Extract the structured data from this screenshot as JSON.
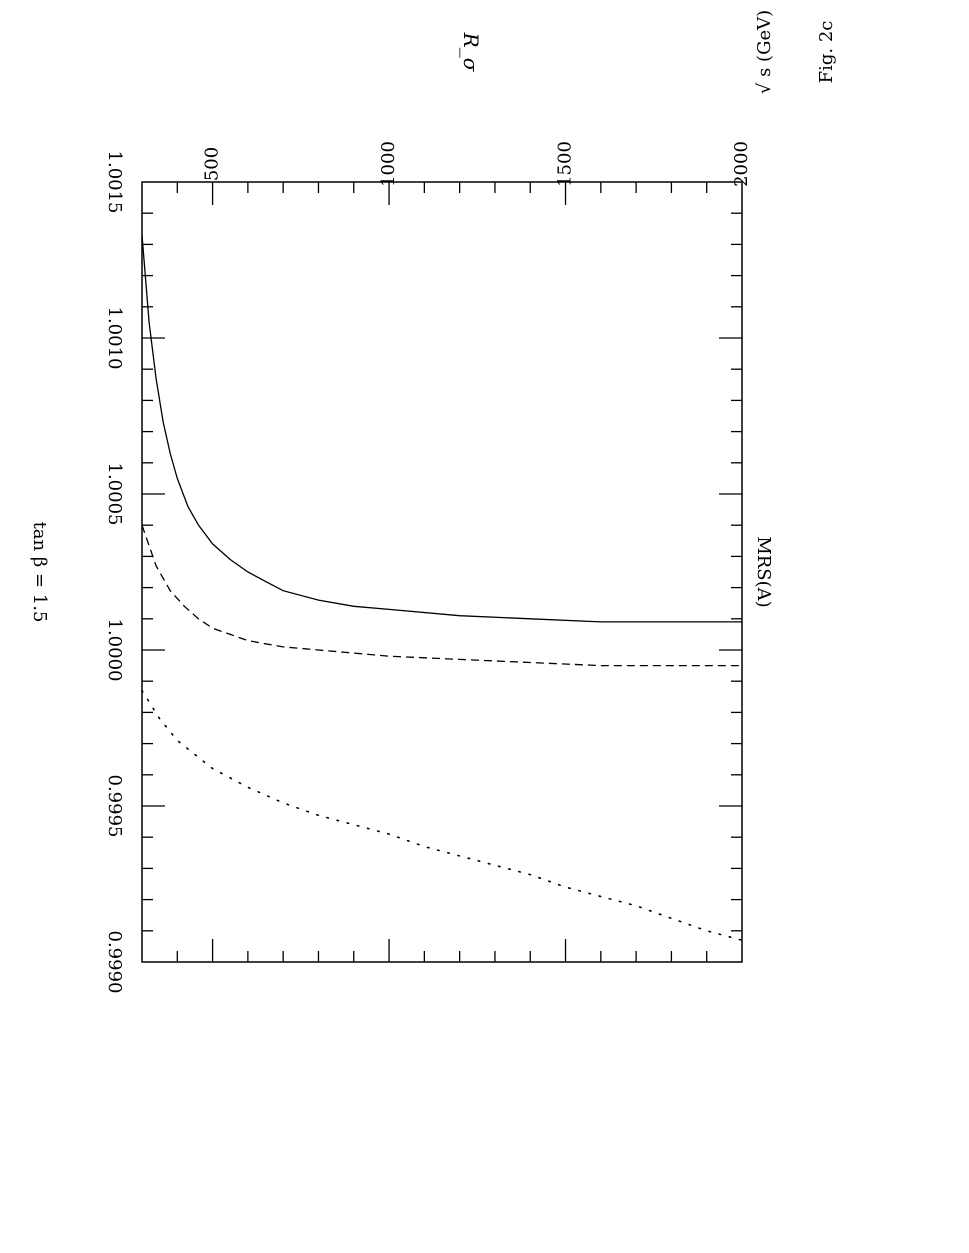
{
  "chart_data": {
    "type": "line",
    "title": "MRS(A)",
    "annotation": "tan β = 1.5",
    "xlabel": "√ s   (GeV)",
    "ylabel": "R_σ",
    "caption": "Fig. 2c",
    "xlim": [
      300,
      2000
    ],
    "ylim": [
      0.999,
      1.0015
    ],
    "x_ticks": [
      500,
      1000,
      1500,
      2000
    ],
    "x_tick_labels": [
      "500",
      "1000",
      "1500",
      "2000"
    ],
    "y_ticks": [
      0.999,
      0.9995,
      1.0,
      1.0005,
      1.001,
      1.0015
    ],
    "y_tick_labels": [
      "0.9990",
      "0.9995",
      "1.0000",
      "1.0005",
      "1.0010",
      "1.0015"
    ],
    "grid": false,
    "series": [
      {
        "style": "solid",
        "x": [
          300,
          320,
          340,
          360,
          380,
          400,
          430,
          460,
          500,
          550,
          600,
          650,
          700,
          800,
          900,
          1000,
          1200,
          1400,
          1600,
          1800,
          1900,
          2000
        ],
        "y": [
          1.00133,
          1.00105,
          1.00087,
          1.00073,
          1.00063,
          1.00055,
          1.00046,
          1.0004,
          1.00034,
          1.00029,
          1.00025,
          1.00022,
          1.00019,
          1.00016,
          1.00014,
          1.00013,
          1.00011,
          1.0001,
          1.00009,
          1.00009,
          1.00009,
          1.00009
        ]
      },
      {
        "style": "dashed",
        "x": [
          300,
          340,
          380,
          420,
          460,
          500,
          550,
          600,
          650,
          700,
          800,
          900,
          1000,
          1200,
          1400,
          1600,
          1800,
          2000
        ],
        "y": [
          1.0004,
          1.00027,
          1.00019,
          1.00014,
          1.0001,
          1.00007,
          1.00005,
          1.00003,
          1.00002,
          1.00001,
          1.0,
          0.99999,
          0.99998,
          0.99997,
          0.99996,
          0.99995,
          0.99995,
          0.99995
        ]
      },
      {
        "style": "dotted",
        "x": [
          300,
          350,
          400,
          500,
          600,
          700,
          800,
          900,
          1000,
          1100,
          1200,
          1300,
          1400,
          1500,
          1600,
          1700,
          1800,
          1900,
          2000
        ],
        "y": [
          0.99987,
          0.99978,
          0.99971,
          0.99962,
          0.99956,
          0.99951,
          0.99947,
          0.99944,
          0.99941,
          0.99937,
          0.99934,
          0.99931,
          0.99928,
          0.99924,
          0.99921,
          0.99918,
          0.99914,
          0.9991,
          0.99907
        ]
      }
    ]
  }
}
